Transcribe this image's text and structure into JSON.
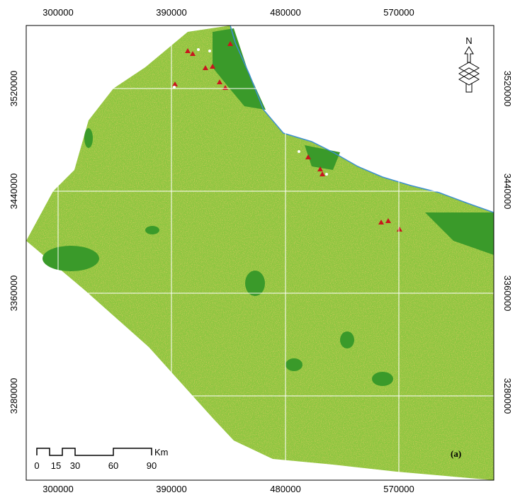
{
  "map": {
    "x_ticks": [
      "300000",
      "390000",
      "480000",
      "570000"
    ],
    "y_ticks": [
      "3520000",
      "3440000",
      "3360000",
      "3280000"
    ],
    "scale_bar": {
      "labels": [
        "0",
        "15",
        "30",
        "60",
        "90"
      ],
      "unit": "Km"
    },
    "north_label": "N",
    "panel_label": "(a)"
  }
}
